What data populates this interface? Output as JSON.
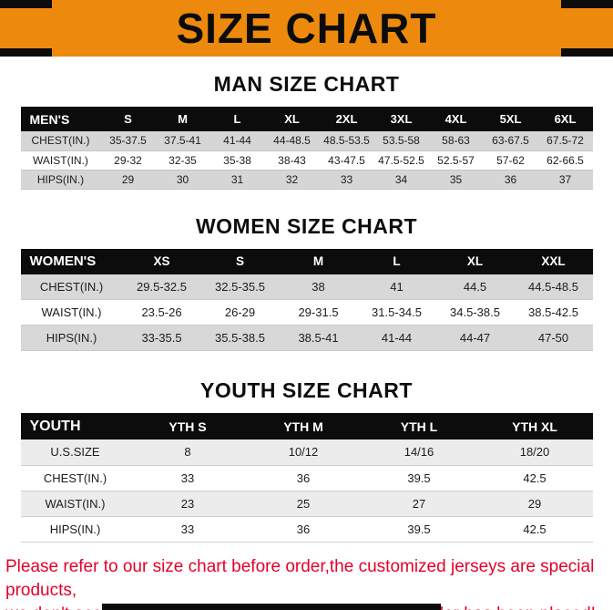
{
  "banner": {
    "title": "SIZE CHART"
  },
  "colors": {
    "banner_orange": "#ED8A0D",
    "table_header_black": "#0C0C0C",
    "row_gray": "#D6D6D6",
    "notice_red": "#E4002B"
  },
  "chart_data": [
    {
      "type": "table",
      "title": "MAN SIZE CHART",
      "columns": [
        "MEN'S",
        "S",
        "M",
        "L",
        "XL",
        "2XL",
        "3XL",
        "4XL",
        "5XL",
        "6XL"
      ],
      "rows": [
        [
          "CHEST(IN.)",
          "35-37.5",
          "37.5-41",
          "41-44",
          "44-48.5",
          "48.5-53.5",
          "53.5-58",
          "58-63",
          "63-67.5",
          "67.5-72"
        ],
        [
          "WAIST(IN.)",
          "29-32",
          "32-35",
          "35-38",
          "38-43",
          "43-47.5",
          "47.5-52.5",
          "52.5-57",
          "57-62",
          "62-66.5"
        ],
        [
          "HIPS(IN.)",
          "29",
          "30",
          "31",
          "32",
          "33",
          "34",
          "35",
          "36",
          "37"
        ]
      ]
    },
    {
      "type": "table",
      "title": "WOMEN SIZE CHART",
      "columns": [
        "WOMEN'S",
        "XS",
        "S",
        "M",
        "L",
        "XL",
        "XXL"
      ],
      "rows": [
        [
          "CHEST(IN.)",
          "29.5-32.5",
          "32.5-35.5",
          "38",
          "41",
          "44.5",
          "44.5-48.5"
        ],
        [
          "WAIST(IN.)",
          "23.5-26",
          "26-29",
          "29-31.5",
          "31.5-34.5",
          "34.5-38.5",
          "38.5-42.5"
        ],
        [
          "HIPS(IN.)",
          "33-35.5",
          "35.5-38.5",
          "38.5-41",
          "41-44",
          "44-47",
          "47-50"
        ]
      ]
    },
    {
      "type": "table",
      "title": "YOUTH SIZE CHART",
      "columns": [
        "YOUTH",
        "YTH S",
        "YTH M",
        "YTH L",
        "YTH XL"
      ],
      "rows": [
        [
          "U.S.SIZE",
          "8",
          "10/12",
          "14/16",
          "18/20"
        ],
        [
          "CHEST(IN.)",
          "33",
          "36",
          "39.5",
          "42.5"
        ],
        [
          "WAIST(IN.)",
          "23",
          "25",
          "27",
          "29"
        ],
        [
          "HIPS(IN.)",
          "33",
          "36",
          "39.5",
          "42.5"
        ]
      ]
    }
  ],
  "footer": {
    "line1": "Please refer to our size chart before order,the customized jerseys are special products,",
    "line2": "we don't accept cancel, change, teturn or refund after order has been placed!"
  }
}
